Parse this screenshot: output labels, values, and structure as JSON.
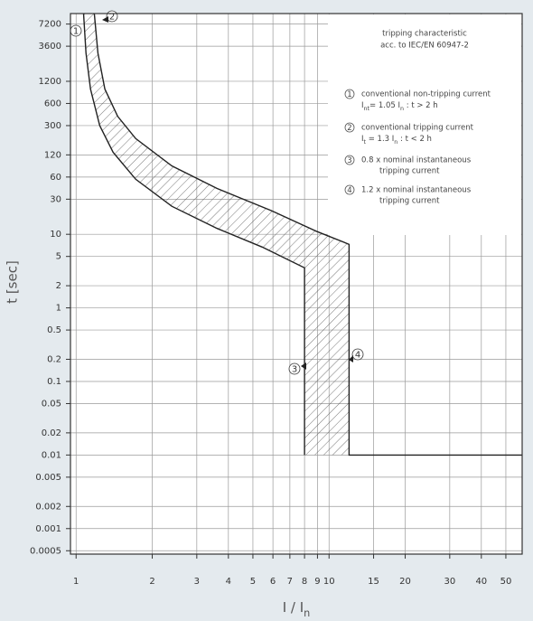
{
  "chart_data": {
    "type": "line",
    "xlabel": [
      "I / I",
      "n"
    ],
    "ylabel": "t [sec]",
    "xscale": "log",
    "yscale": "log",
    "grid": true,
    "xlim": [
      0.95,
      58
    ],
    "ylim": [
      0.00045,
      10000
    ],
    "xticks": [
      1,
      2,
      3,
      4,
      5,
      6,
      7,
      8,
      9,
      10,
      15,
      20,
      30,
      40,
      50
    ],
    "yticks": [
      7200,
      3600,
      1200,
      600,
      300,
      120,
      60,
      30,
      10,
      5,
      2,
      1,
      0.5,
      0.2,
      0.1,
      0.05,
      0.02,
      0.01,
      0.005,
      0.002,
      0.001,
      0.0005
    ],
    "series": [
      {
        "color": "#222",
        "x": [
          1.07,
          1.094,
          1.14,
          1.24,
          1.4,
          1.72,
          2.39,
          3.61,
          5.44,
          8,
          8
        ],
        "values": [
          10000,
          2900,
          940,
          300,
          130,
          56,
          24,
          12,
          6.7,
          3.5,
          0.01
        ]
      },
      {
        "color": "#222",
        "x": [
          1.18,
          1.22,
          1.3,
          1.46,
          1.72,
          2.39,
          3.61,
          5.91,
          8.9,
          12,
          12,
          58
        ],
        "values": [
          10000,
          2900,
          940,
          400,
          200,
          85,
          42,
          21,
          11,
          7.3,
          0.01,
          0.01
        ]
      }
    ],
    "legend": {
      "title": [
        "tripping characteristic",
        "acc. to IEC/EN 60947-2"
      ],
      "items": [
        {
          "marker": "1",
          "lines": [
            "conventional non-tripping current",
            [
              "I",
              "nt",
              "= 1.05 I",
              "n",
              " : t > 2 h"
            ]
          ]
        },
        {
          "marker": "2",
          "lines": [
            "conventional tripping current",
            [
              "I",
              "t",
              " = 1.3 I",
              "n",
              " : t < 2 h"
            ]
          ]
        },
        {
          "marker": "3",
          "lines": [
            "0.8 x nominal instantaneous",
            "tripping current"
          ]
        },
        {
          "marker": "4",
          "lines": [
            "1.2 x nominal instantaneous",
            "tripping current"
          ]
        }
      ]
    }
  }
}
